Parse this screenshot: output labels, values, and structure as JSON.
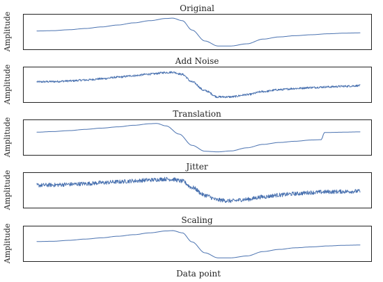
{
  "chart_data": {
    "type": "line",
    "xlabel": "Data point",
    "ylabel": "Amplitude",
    "line_color": "#4a72b0",
    "grid": false,
    "ticks_shown": false,
    "x_domain": [
      0,
      100
    ],
    "y_domain": [
      0,
      100
    ],
    "panels": [
      {
        "title": "Original",
        "ylabel": "Amplitude",
        "x": [
          0,
          5,
          10,
          15,
          20,
          25,
          30,
          35,
          40,
          42,
          45,
          48,
          52,
          56,
          60,
          65,
          70,
          75,
          80,
          85,
          90,
          95,
          100
        ],
        "y": [
          52,
          53,
          56,
          60,
          65,
          71,
          78,
          85,
          92,
          93,
          85,
          55,
          20,
          4,
          4,
          11,
          26,
          33,
          37,
          40,
          43,
          45,
          46
        ]
      },
      {
        "title": "Add Noise",
        "ylabel": "Amplitude",
        "noise": "fine",
        "x": [
          0,
          5,
          10,
          15,
          20,
          25,
          30,
          35,
          40,
          42,
          45,
          48,
          52,
          56,
          60,
          65,
          70,
          75,
          80,
          85,
          90,
          95,
          100
        ],
        "y": [
          58,
          59,
          61,
          64,
          68,
          73,
          78,
          83,
          88,
          89,
          82,
          58,
          30,
          10,
          10,
          17,
          27,
          33,
          37,
          40,
          42,
          44,
          46
        ]
      },
      {
        "title": "Translation",
        "ylabel": "Amplitude",
        "x": [
          0,
          5,
          10,
          15,
          20,
          25,
          30,
          35,
          37,
          40,
          44,
          48,
          52,
          56,
          60,
          65,
          70,
          75,
          80,
          85,
          88,
          89,
          90,
          95,
          100
        ],
        "y": [
          66,
          68,
          71,
          75,
          79,
          83,
          88,
          93,
          94,
          86,
          60,
          24,
          5,
          3,
          6,
          16,
          27,
          33,
          37,
          41,
          42,
          65,
          65,
          66,
          67
        ]
      },
      {
        "title": "Jitter",
        "ylabel": "Amplitude",
        "noise": "coarse",
        "x": [
          0,
          5,
          10,
          15,
          20,
          25,
          30,
          35,
          40,
          42,
          45,
          48,
          52,
          56,
          60,
          65,
          70,
          75,
          80,
          85,
          90,
          95,
          100
        ],
        "y": [
          65,
          66,
          68,
          70,
          73,
          76,
          79,
          82,
          85,
          84,
          78,
          58,
          33,
          18,
          15,
          20,
          28,
          34,
          38,
          42,
          44,
          45,
          46
        ]
      },
      {
        "title": "Scaling",
        "ylabel": "Amplitude",
        "x": [
          0,
          5,
          10,
          15,
          20,
          25,
          30,
          35,
          40,
          42,
          45,
          48,
          52,
          56,
          60,
          65,
          70,
          75,
          80,
          85,
          90,
          95,
          100
        ],
        "y": [
          56,
          57,
          60,
          64,
          68,
          73,
          78,
          84,
          90,
          91,
          84,
          55,
          20,
          4,
          4,
          10,
          24,
          31,
          36,
          39,
          42,
          44,
          45
        ]
      }
    ]
  }
}
